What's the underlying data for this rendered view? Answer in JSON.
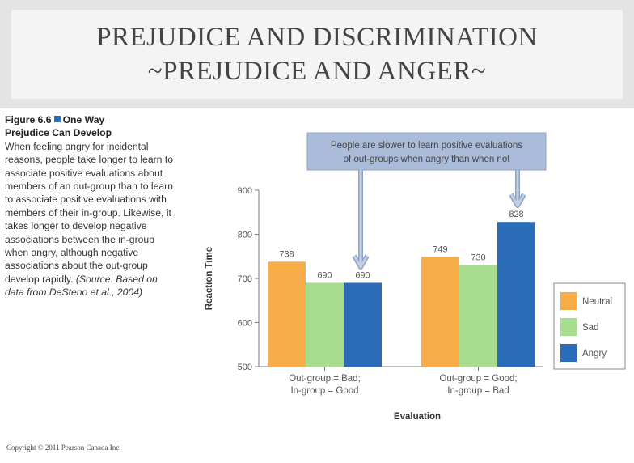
{
  "slide": {
    "title_line1": "PREJUDICE AND DISCRIMINATION",
    "title_line2": "~PREJUDICE AND ANGER~",
    "copyright": "Copyright © 2011 Pearson Canada Inc."
  },
  "caption": {
    "figure_label": "Figure 6.6",
    "figure_title_a": "One Way",
    "figure_title_b": "Prejudice Can Develop",
    "body": "When feeling angry for incidental reasons, people take longer to learn to associate positive evaluations about members of an out-group than to learn to associate positive evaluations with members of their in-group. Likewise, it takes longer to develop negative associations between the in-group when angry, although negative associations about the out-group develop rapidly.",
    "source": "(Source: Based on data from DeSteno et al., 2004)"
  },
  "callout": {
    "line1": "People are slower to learn positive evaluations",
    "line2": "of out-groups when angry than when not"
  },
  "chart_data": {
    "type": "bar",
    "title": "",
    "xlabel": "Evaluation",
    "ylabel": "Reaction Time",
    "ylim": [
      500,
      900
    ],
    "yticks": [
      500,
      600,
      700,
      800,
      900
    ],
    "categories": [
      [
        "Out-group = Bad;",
        "In-group = Good"
      ],
      [
        "Out-group = Good;",
        "In-group = Bad"
      ]
    ],
    "series": [
      {
        "name": "Neutral",
        "color": "#f6ad4a",
        "values": [
          738,
          749
        ]
      },
      {
        "name": "Sad",
        "color": "#a8dc8e",
        "values": [
          690,
          730
        ]
      },
      {
        "name": "Angry",
        "color": "#2a6cb8",
        "values": [
          690,
          828
        ]
      }
    ],
    "legend_position": "right"
  }
}
